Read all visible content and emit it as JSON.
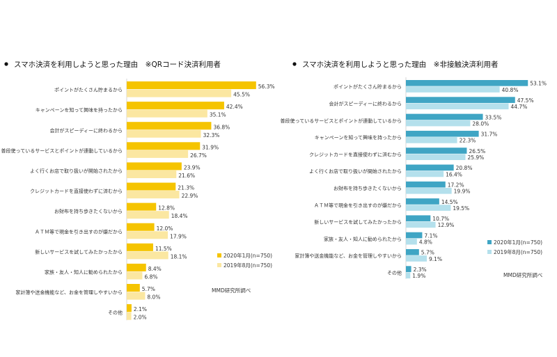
{
  "chart_data": [
    {
      "type": "bar",
      "orientation": "horizontal",
      "title": "スマホ決済を利用しようと思った理由　※QRコード決済利用者",
      "categories": [
        "ポイントがたくさん貯まるから",
        "キャンペーンを知って興味を持ったから",
        "会計がスピーディーに終わるから",
        "普段使っているサービスとポイントが連動しているから",
        "よく行くお店で取り扱いが開始されたから",
        "クレジットカードを直接使わずに済むから",
        "お財布を持ち歩きたくないから",
        "ＡＴＭ等で現金を引き出すのが嫌だから",
        "新しいサービスを試してみたかったから",
        "家族・友人・知人に勧められたから",
        "家計簿や送金機能など、お金を管理しやすいから",
        "その他"
      ],
      "series": [
        {
          "name": "2020年1月(n=750)",
          "color": "#F5C400",
          "values": [
            56.3,
            42.4,
            36.8,
            31.9,
            23.9,
            21.3,
            12.8,
            12.0,
            11.5,
            8.4,
            5.7,
            2.1
          ]
        },
        {
          "name": "2019年8月(n=750)",
          "color": "#FBE7A1",
          "values": [
            45.5,
            35.1,
            32.3,
            26.7,
            21.6,
            22.9,
            18.4,
            17.9,
            18.1,
            6.8,
            8.0,
            2.0
          ]
        }
      ],
      "xlim": [
        0,
        60
      ],
      "legend": "bottom-right",
      "source": "MMD研究所調べ"
    },
    {
      "type": "bar",
      "orientation": "horizontal",
      "title": "スマホ決済を利用しようと思った理由　※非接触決済利用者",
      "categories": [
        "ポイントがたくさん貯まるから",
        "会計がスピーディーに終わるから",
        "普段使っているサービスとポイントが連動しているから",
        "キャンペーンを知って興味を持ったから",
        "クレジットカードを直接使わずに済むから",
        "よく行くお店で取り扱いが開始されたから",
        "お財布を持ち歩きたくないから",
        "ＡＴＭ等で現金を引き出すのが嫌だから",
        "新しいサービスを試してみたかったから",
        "家族・友人・知人に勧められたから",
        "家計簿や送金機能など、お金を管理しやすいから",
        "その他"
      ],
      "series": [
        {
          "name": "2020年1月(n=750)",
          "color": "#3FA5C4",
          "values": [
            53.1,
            47.5,
            33.5,
            31.7,
            26.5,
            20.8,
            17.2,
            14.5,
            10.7,
            7.1,
            5.7,
            2.3
          ]
        },
        {
          "name": "2019年8月(n=750)",
          "color": "#B4E0EC",
          "values": [
            40.8,
            44.7,
            28.0,
            22.3,
            25.9,
            16.4,
            19.9,
            19.5,
            12.9,
            4.8,
            9.1,
            1.9
          ]
        }
      ],
      "xlim": [
        0,
        60
      ],
      "legend": "bottom-right",
      "source": "MMD研究所調べ"
    }
  ]
}
